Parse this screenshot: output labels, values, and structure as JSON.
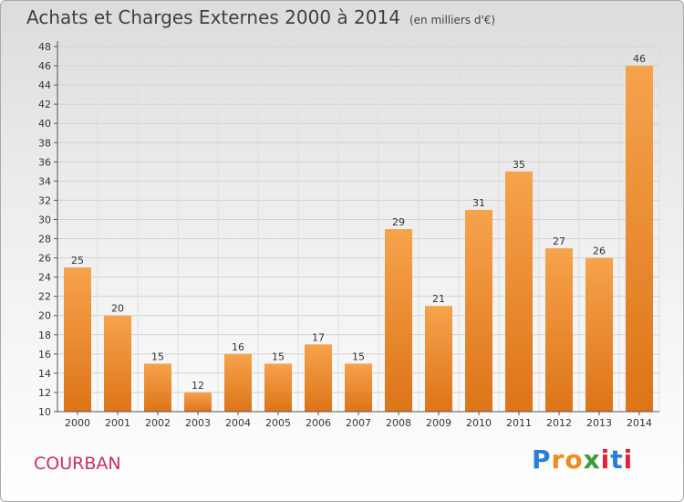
{
  "header": {
    "title": "Achats et Charges Externes 2000 à 2014",
    "unit": "(en milliers d'€)"
  },
  "commune": "COURBAN",
  "logo": {
    "letters": [
      "P",
      "r",
      "o",
      "x",
      "i",
      "t",
      "i"
    ],
    "colors": [
      "#2a7fd4",
      "#f08a1c",
      "#f08a1c",
      "#3a9c3a",
      "#e0243a",
      "#2a7fd4",
      "#e0243a"
    ]
  },
  "chart_data": {
    "type": "bar",
    "categories": [
      "2000",
      "2001",
      "2002",
      "2003",
      "2004",
      "2005",
      "2006",
      "2007",
      "2008",
      "2009",
      "2010",
      "2011",
      "2012",
      "2013",
      "2014"
    ],
    "values": [
      25,
      20,
      15,
      12,
      16,
      15,
      17,
      15,
      29,
      21,
      31,
      35,
      27,
      26,
      46
    ],
    "title": "Achats et Charges Externes 2000 à 2014",
    "ylim": [
      10,
      48
    ],
    "yticks": [
      10,
      12,
      14,
      16,
      18,
      20,
      22,
      24,
      26,
      28,
      30,
      32,
      34,
      36,
      38,
      40,
      42,
      44,
      46,
      48
    ],
    "grid": true,
    "bar_color": "#f08a2a"
  }
}
